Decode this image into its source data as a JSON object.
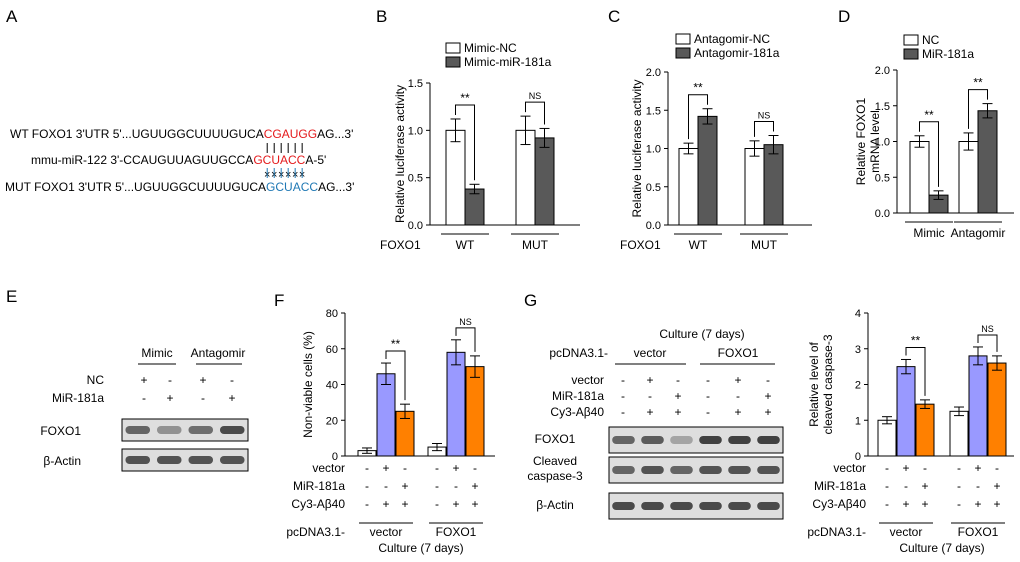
{
  "panel_letters": [
    "A",
    "B",
    "C",
    "D",
    "E",
    "F",
    "G"
  ],
  "panelA": {
    "rows": [
      {
        "prefix": "WT FOXO1 3'UTR 5'...UGUUGGCUUUUGUCA",
        "site": "CGAUGG",
        "suffix": "AG...3'",
        "site_color": "#e41a1c"
      },
      {
        "prefix": "mmu-miR-122 3'-CCAUGUUAGUUGCCA",
        "site": "GCUACC",
        "suffix": "A-5'",
        "site_color": "#e41a1c"
      },
      {
        "prefix": "MUT FOXO1 3'UTR 5'...UGUUGGCUUUUGUCA",
        "site": "GCUACC",
        "suffix": "AG...3'",
        "site_color": "#1f78b4"
      }
    ],
    "x_mark_color": "#1f78b4"
  },
  "colors": {
    "white_bar": "#ffffff",
    "dark_bar": "#595959",
    "purple_bar": "#9999ff",
    "orange_bar": "#ff8000"
  },
  "chart_data": [
    {
      "id": "B",
      "type": "bar",
      "ylabel": "Relative luciferase activity",
      "ylim": [
        0,
        1.5
      ],
      "yticks": [
        "0.0",
        "0.5",
        "1.0",
        "1.5"
      ],
      "row_label": "FOXO1",
      "group_labels": [
        "WT",
        "MUT"
      ],
      "series": [
        {
          "name": "Mimic-NC",
          "values": [
            1.0,
            1.0
          ],
          "errors": [
            0.12,
            0.15
          ],
          "color": "#ffffff"
        },
        {
          "name": "Mimic-miR-181a",
          "values": [
            0.38,
            0.92
          ],
          "errors": [
            0.05,
            0.1
          ],
          "color": "#595959"
        }
      ],
      "annotations": [
        "**",
        "NS"
      ]
    },
    {
      "id": "C",
      "type": "bar",
      "ylabel": "Relative luciferase activity",
      "ylim": [
        0,
        2.0
      ],
      "yticks": [
        "0.0",
        "0.5",
        "1.0",
        "1.5",
        "2.0"
      ],
      "row_label": "FOXO1",
      "group_labels": [
        "WT",
        "MUT"
      ],
      "series": [
        {
          "name": "Antagomir-NC",
          "values": [
            1.0,
            1.0
          ],
          "errors": [
            0.07,
            0.1
          ],
          "color": "#ffffff"
        },
        {
          "name": "Antagomir-181a",
          "values": [
            1.42,
            1.05
          ],
          "errors": [
            0.1,
            0.12
          ],
          "color": "#595959"
        }
      ],
      "annotations": [
        "**",
        "NS"
      ]
    },
    {
      "id": "D",
      "type": "bar",
      "ylabel_lines": [
        "Relative FOXO1",
        "mRNA level"
      ],
      "ylim": [
        0,
        2.0
      ],
      "yticks": [
        "0.0",
        "0.5",
        "1.0",
        "1.5",
        "2.0"
      ],
      "group_labels": [
        "Mimic",
        "Antagomir"
      ],
      "series": [
        {
          "name": "NC",
          "values": [
            1.0,
            1.0
          ],
          "errors": [
            0.08,
            0.12
          ],
          "color": "#ffffff"
        },
        {
          "name": "MiR-181a",
          "values": [
            0.25,
            1.43
          ],
          "errors": [
            0.06,
            0.1
          ],
          "color": "#595959"
        }
      ],
      "annotations": [
        "**",
        "**"
      ]
    },
    {
      "id": "F",
      "type": "bar",
      "ylabel": "Non-viable cells (%)",
      "ylim": [
        0,
        80
      ],
      "yticks": [
        "0",
        "20",
        "40",
        "60",
        "80"
      ],
      "values": [
        3,
        46,
        25,
        5,
        58,
        50
      ],
      "errors": [
        1.5,
        6,
        4,
        2,
        7,
        6
      ],
      "colors": [
        "#ffffff",
        "#9999ff",
        "#ff8000",
        "#ffffff",
        "#9999ff",
        "#ff8000"
      ],
      "rows": [
        {
          "label": "vector",
          "marks": [
            "-",
            "+",
            "-",
            "-",
            "+",
            "-"
          ]
        },
        {
          "label": "MiR-181a",
          "marks": [
            "-",
            "-",
            "+",
            "-",
            "-",
            "+"
          ]
        },
        {
          "label": "Cy3-Aβ40",
          "marks": [
            "-",
            "+",
            "+",
            "-",
            "+",
            "+"
          ]
        }
      ],
      "group_row_label": "pcDNA3.1-",
      "group_labels": [
        "vector",
        "FOXO1"
      ],
      "footer": "Culture (7 days)",
      "annotations": [
        "**",
        "NS"
      ]
    },
    {
      "id": "G",
      "type": "bar",
      "ylabel_lines": [
        "Relative level of",
        "cleaved caspase-3"
      ],
      "ylim": [
        0,
        4
      ],
      "yticks": [
        "0",
        "1",
        "2",
        "3",
        "4"
      ],
      "values": [
        1.0,
        2.5,
        1.45,
        1.25,
        2.8,
        2.6
      ],
      "errors": [
        0.1,
        0.2,
        0.12,
        0.12,
        0.25,
        0.2
      ],
      "colors": [
        "#ffffff",
        "#9999ff",
        "#ff8000",
        "#ffffff",
        "#9999ff",
        "#ff8000"
      ],
      "rows": [
        {
          "label": "vector",
          "marks": [
            "-",
            "+",
            "-",
            "-",
            "+",
            "-"
          ]
        },
        {
          "label": "MiR-181a",
          "marks": [
            "-",
            "-",
            "+",
            "-",
            "-",
            "+"
          ]
        },
        {
          "label": "Cy3-Aβ40",
          "marks": [
            "-",
            "+",
            "+",
            "-",
            "+",
            "+"
          ]
        }
      ],
      "group_row_label": "pcDNA3.1-",
      "group_labels": [
        "vector",
        "FOXO1"
      ],
      "footer": "Culture (7 days)",
      "annotations": [
        "**",
        "NS"
      ]
    }
  ],
  "panelE": {
    "groups": [
      "Mimic",
      "Antagomir"
    ],
    "rows": [
      {
        "label": "NC",
        "marks": [
          "+",
          "-",
          "+",
          "-"
        ]
      },
      {
        "label": "MiR-181a",
        "marks": [
          "-",
          "+",
          "-",
          "+"
        ]
      }
    ],
    "blots": [
      {
        "label": "FOXO1",
        "intensity": [
          0.55,
          0.3,
          0.5,
          0.7
        ]
      },
      {
        "label": "β-Actin",
        "intensity": [
          0.65,
          0.65,
          0.65,
          0.65
        ]
      }
    ]
  },
  "panelG_blot": {
    "header": "Culture (7 days)",
    "group_row_label": "pcDNA3.1-",
    "groups": [
      "vector",
      "FOXO1"
    ],
    "rows": [
      {
        "label": "vector",
        "marks": [
          "-",
          "+",
          "-",
          "-",
          "+",
          "-"
        ]
      },
      {
        "label": "MiR-181a",
        "marks": [
          "-",
          "-",
          "+",
          "-",
          "-",
          "+"
        ]
      },
      {
        "label": "Cy3-Aβ40",
        "marks": [
          "-",
          "+",
          "+",
          "-",
          "+",
          "+"
        ]
      }
    ],
    "blots": [
      {
        "label": "FOXO1",
        "lines": [
          "FOXO1"
        ],
        "intensity": [
          0.55,
          0.6,
          0.2,
          0.75,
          0.75,
          0.75
        ]
      },
      {
        "label": "Cleaved caspase-3",
        "lines": [
          "Cleaved",
          "caspase-3"
        ],
        "intensity": [
          0.55,
          0.65,
          0.55,
          0.65,
          0.65,
          0.65
        ]
      },
      {
        "label": "β-Actin",
        "lines": [
          "β-Actin"
        ],
        "intensity": [
          0.7,
          0.7,
          0.7,
          0.7,
          0.7,
          0.7
        ]
      }
    ]
  }
}
